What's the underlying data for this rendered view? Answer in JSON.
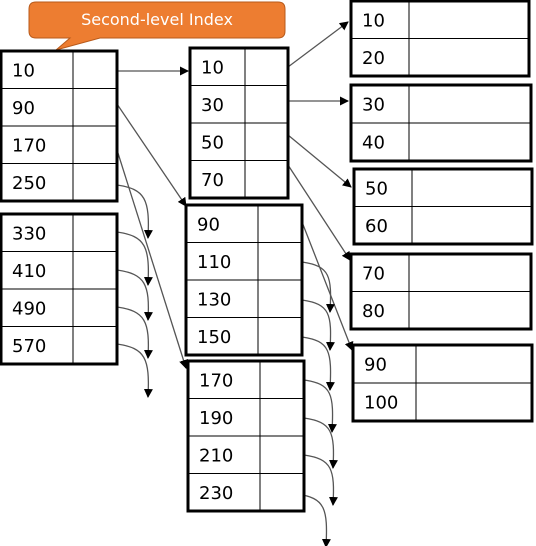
{
  "callout": {
    "label": "Second-level Index",
    "fill": "#ED7D31",
    "stroke": "#B85A1B"
  },
  "colors": {
    "block_border": "#000000",
    "arrow": "#555555"
  },
  "second_level_index": {
    "blocks": [
      {
        "id": "top-index-block-1",
        "keys": [
          "10",
          "90",
          "170",
          "250"
        ]
      },
      {
        "id": "top-index-block-2",
        "keys": [
          "330",
          "410",
          "490",
          "570"
        ]
      }
    ]
  },
  "first_level_index": {
    "blocks": [
      {
        "id": "index-block-1",
        "keys": [
          "10",
          "30",
          "50",
          "70"
        ]
      },
      {
        "id": "index-block-2",
        "keys": [
          "90",
          "110",
          "130",
          "150"
        ]
      },
      {
        "id": "index-block-3",
        "keys": [
          "170",
          "190",
          "210",
          "230"
        ]
      }
    ]
  },
  "data_blocks": {
    "blocks": [
      {
        "id": "data-block-1",
        "keys": [
          "10",
          "20"
        ]
      },
      {
        "id": "data-block-2",
        "keys": [
          "30",
          "40"
        ]
      },
      {
        "id": "data-block-3",
        "keys": [
          "50",
          "60"
        ]
      },
      {
        "id": "data-block-4",
        "keys": [
          "70",
          "80"
        ]
      },
      {
        "id": "data-block-5",
        "keys": [
          "90",
          "100"
        ]
      }
    ]
  }
}
